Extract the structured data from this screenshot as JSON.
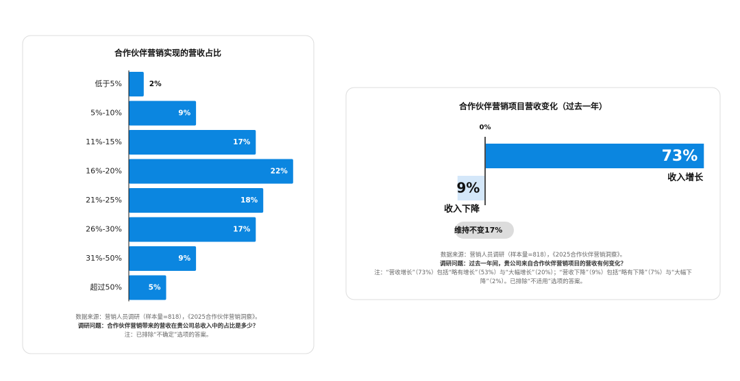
{
  "chart_data": [
    {
      "type": "hbar",
      "title": "合作伙伴营销实现的营收占比",
      "categories": [
        "低于5%",
        "5%-10%",
        "11%-15%",
        "16%-20%",
        "21%-25%",
        "26%-30%",
        "31%-50%",
        "超过50%"
      ],
      "values": [
        2,
        9,
        17,
        22,
        18,
        17,
        9,
        5
      ],
      "value_labels": [
        "2%",
        "9%",
        "17%",
        "22%",
        "18%",
        "17%",
        "9%",
        "5%"
      ],
      "color": "#0b86e0",
      "source": "数据来源：营销人员调研（样本量=818），《2025合作伙伴营销洞察》。",
      "question": "调研问题：合作伙伴营销带来的营收在贵公司总收入中的占比是多少？",
      "note": "注：已排除“不确定”选项的答案。"
    },
    {
      "type": "diverging",
      "title": "合作伙伴营销项目营收变化（过去一年）",
      "categories": [
        "收入增长",
        "收入下降",
        "维持不变"
      ],
      "values": [
        73,
        9,
        17
      ],
      "value_labels": [
        "73%",
        "9%",
        "17%"
      ],
      "colors": [
        "#0b86e0",
        "#d4e7f9",
        "#dcdcdc"
      ],
      "xticks": [
        {
          "value": 0,
          "label": "0%"
        }
      ],
      "source": "数据来源：营销人员调研（样本量=818），《2025合作伙伴营销洞察》。",
      "question": "调研问题：过去一年间，贵公司来自合作伙伴营销项目的营收有何变化？",
      "note": "注：“营收增长”（73%）包括“略有增长”（53%）与“大幅增长”（20%）；“营收下降”（9%）包括“略有下降”（7%）与“大幅下降”（2%）。已排除“不适用”选项的答案。"
    }
  ]
}
